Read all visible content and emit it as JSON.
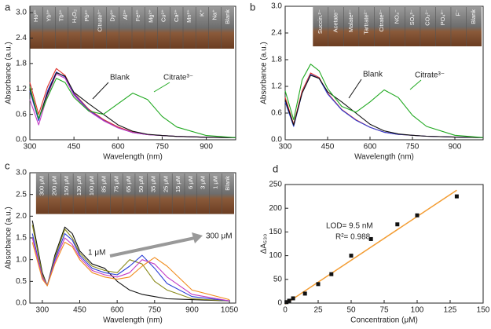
{
  "chart_data": [
    {
      "type": "line",
      "panel": "a",
      "x_label": "Wavelength (nm)",
      "y_label": "Absorbance (a.u.)",
      "xlim": [
        300,
        1000
      ],
      "xticks": [
        300,
        450,
        600,
        750,
        900
      ],
      "ylim": [
        0,
        3.15
      ],
      "yticks": [
        {
          "value": 0,
          "label": "0.0"
        },
        0.6,
        1.2,
        1.8,
        2.4,
        {
          "value": 3,
          "label": "3.0"
        }
      ],
      "inset_labels": [
        "Ho³⁺",
        "Yb³⁺",
        "Tb³⁺",
        "H₂O₂",
        "Pb²⁺",
        "Citrate³⁻",
        "Dy³⁺",
        "Al³⁺",
        "Fe³⁺",
        "Mg²⁺",
        "Cu²⁺",
        "Ca²⁺",
        "Mn²⁺",
        "K⁺",
        "Na⁺",
        "Blank"
      ],
      "annotations": [
        "Blank",
        "Citrate³⁻"
      ],
      "x": [
        300,
        330,
        360,
        390,
        420,
        450,
        500,
        550,
        600,
        650,
        700,
        750,
        800,
        900,
        1000
      ],
      "series": [
        {
          "color": "#e0302a",
          "values": [
            1.35,
            0.6,
            1.25,
            1.68,
            1.52,
            1.1,
            0.72,
            0.48,
            0.3,
            0.18,
            0.12,
            0.1,
            0.08,
            0.06,
            0.05
          ]
        },
        {
          "color": "#2b3fd6",
          "values": [
            1.15,
            0.45,
            1.15,
            1.6,
            1.48,
            1.08,
            0.7,
            0.46,
            0.28,
            0.17,
            0.12,
            0.1,
            0.08,
            0.06,
            0.05
          ]
        },
        {
          "color": "#c23bc4",
          "values": [
            0.95,
            0.35,
            1.05,
            1.55,
            1.45,
            1.05,
            0.68,
            0.45,
            0.28,
            0.17,
            0.12,
            0.1,
            0.08,
            0.06,
            0.05
          ]
        },
        {
          "color": "#111111",
          "values": [
            1.2,
            0.5,
            1.1,
            1.58,
            1.5,
            1.12,
            0.85,
            0.6,
            0.35,
            0.2,
            0.13,
            0.1,
            0.08,
            0.06,
            0.05
          ]
        },
        {
          "color": "#1fa81f",
          "values": [
            1.25,
            0.5,
            1.0,
            1.45,
            1.35,
            1.0,
            0.68,
            0.6,
            0.85,
            1.1,
            0.95,
            0.55,
            0.3,
            0.1,
            0.05
          ]
        }
      ]
    },
    {
      "type": "line",
      "panel": "b",
      "x_label": "Wavelength (nm)",
      "y_label": "Absorbance (a.u.)",
      "xlim": [
        300,
        1000
      ],
      "xticks": [
        300,
        450,
        600,
        750,
        900
      ],
      "ylim": [
        0,
        3.0
      ],
      "yticks": [
        {
          "value": 0,
          "label": "0.0"
        },
        0.6,
        1.2,
        1.8,
        2.4,
        {
          "value": 3,
          "label": "3.0"
        }
      ],
      "inset_labels": [
        "Succin.²⁻",
        "Acetate⁻",
        "Malate²⁻",
        "Tartrate²⁻",
        "Citrate³⁻",
        "NO₃⁻",
        "SO₄²⁻",
        "CO₃²⁻",
        "PO₄³⁻",
        "F⁻",
        "Blank"
      ],
      "annotations": [
        "Blank",
        "Citrate³⁻"
      ],
      "x": [
        300,
        330,
        360,
        390,
        420,
        450,
        500,
        550,
        600,
        650,
        700,
        750,
        800,
        900,
        1000
      ],
      "series": [
        {
          "color": "#e0302a",
          "values": [
            0.95,
            0.35,
            1.1,
            1.5,
            1.4,
            1.05,
            0.68,
            0.45,
            0.28,
            0.17,
            0.12,
            0.1,
            0.08,
            0.06,
            0.05
          ]
        },
        {
          "color": "#2b3fd6",
          "values": [
            0.85,
            0.3,
            1.05,
            1.47,
            1.38,
            1.03,
            0.67,
            0.44,
            0.28,
            0.17,
            0.12,
            0.1,
            0.08,
            0.06,
            0.05
          ]
        },
        {
          "color": "#111111",
          "values": [
            0.9,
            0.33,
            1.05,
            1.45,
            1.38,
            1.08,
            0.85,
            0.6,
            0.35,
            0.2,
            0.13,
            0.1,
            0.08,
            0.06,
            0.05
          ]
        },
        {
          "color": "#1fa81f",
          "values": [
            1.1,
            0.45,
            1.35,
            1.7,
            1.55,
            1.15,
            0.75,
            0.62,
            0.85,
            1.12,
            0.95,
            0.55,
            0.3,
            0.1,
            0.05
          ]
        }
      ]
    },
    {
      "type": "line",
      "panel": "c",
      "x_label": "Wavelength (nm)",
      "y_label": "Absorbance (a.u.)",
      "xlim": [
        250,
        1075
      ],
      "xticks": [
        300,
        450,
        600,
        750,
        900,
        1050
      ],
      "ylim": [
        0,
        3.0
      ],
      "yticks": [
        {
          "value": 0,
          "label": "0.0"
        },
        0.5,
        {
          "value": 1,
          "label": "1.0"
        },
        1.5,
        {
          "value": 2,
          "label": "2.0"
        },
        2.5,
        {
          "value": 3,
          "label": "3.0"
        }
      ],
      "inset_labels": [
        "300 μM",
        "200 μM",
        "150 μM",
        "130 μM",
        "100 μM",
        "85 μM",
        "75 μM",
        "65 μM",
        "50 μM",
        "35 μM",
        "25 μM",
        "15 μM",
        "6 μM",
        "3 μM",
        "1 μM",
        "Blank"
      ],
      "annotations": [
        "1 μM",
        "300 μM"
      ],
      "x": [
        260,
        300,
        320,
        350,
        390,
        420,
        450,
        500,
        550,
        600,
        650,
        700,
        750,
        800,
        900,
        1050
      ],
      "series": [
        {
          "color": "#111111",
          "values": [
            1.9,
            0.7,
            0.4,
            1.1,
            1.75,
            1.6,
            1.2,
            0.9,
            0.8,
            0.5,
            0.3,
            0.2,
            0.15,
            0.1,
            0.08,
            0.05
          ]
        },
        {
          "color": "#8a8a1a",
          "values": [
            1.8,
            0.65,
            0.4,
            1.05,
            1.7,
            1.5,
            1.15,
            0.85,
            0.75,
            0.7,
            1.0,
            0.9,
            0.5,
            0.3,
            0.1,
            0.05
          ]
        },
        {
          "color": "#2b3fd6",
          "values": [
            1.6,
            0.6,
            0.4,
            1.0,
            1.6,
            1.45,
            1.1,
            0.8,
            0.7,
            0.65,
            0.85,
            1.1,
            0.8,
            0.45,
            0.15,
            0.05
          ]
        },
        {
          "color": "#c23bc4",
          "values": [
            1.5,
            0.6,
            0.4,
            0.95,
            1.5,
            1.35,
            1.05,
            0.75,
            0.65,
            0.6,
            0.7,
            1.0,
            0.9,
            0.6,
            0.2,
            0.05
          ]
        },
        {
          "color": "#f08c1e",
          "values": [
            1.4,
            0.55,
            0.4,
            0.9,
            1.4,
            1.3,
            1.0,
            0.7,
            0.6,
            0.55,
            0.6,
            0.85,
            1.05,
            0.85,
            0.3,
            0.08
          ]
        }
      ]
    },
    {
      "type": "scatter",
      "panel": "d",
      "x_label": "Concentration (μM)",
      "y_label": "ΔA₅₃₀",
      "xlim": [
        0,
        150
      ],
      "xticks": [
        0,
        25,
        50,
        75,
        100,
        125,
        150
      ],
      "ylim": [
        0,
        250
      ],
      "yticks": [
        0,
        50,
        100,
        150,
        200,
        250
      ],
      "annotations": [
        "LOD= 9.5 nM",
        "R²= 0.988"
      ],
      "series": [
        {
          "color": "#111111",
          "x": [
            1,
            3,
            6,
            15,
            25,
            35,
            50,
            65,
            85,
            100,
            130
          ],
          "values": [
            2,
            5,
            10,
            20,
            40,
            61,
            100,
            135,
            166,
            185,
            225
          ]
        }
      ],
      "fit": {
        "color": "#f39c32",
        "x": [
          0,
          130
        ],
        "values": [
          -2,
          238
        ]
      }
    }
  ]
}
